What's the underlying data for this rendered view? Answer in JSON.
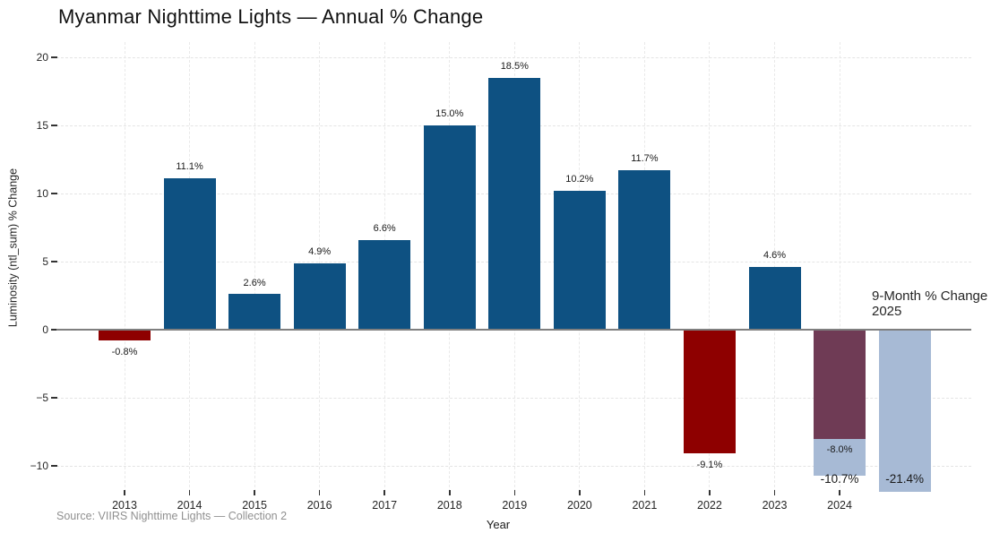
{
  "title": "Myanmar Nighttime Lights — Annual % Change",
  "source_note": "Source: VIIRS Nighttime Lights — Collection 2",
  "annotation": {
    "line1": "9-Month % Change",
    "line2": "2025"
  },
  "axes": {
    "x_label": "Year",
    "y_label": "Luminosity (ntl_sum) % Change",
    "x_tick_labels": [
      "2013",
      "2014",
      "2015",
      "2016",
      "2017",
      "2018",
      "2019",
      "2020",
      "2021",
      "2022",
      "2023",
      "2024"
    ],
    "y_tick_labels": [
      "20",
      "15",
      "10",
      "5",
      "0",
      "−5",
      "−10"
    ],
    "y_tick_values": [
      20,
      15,
      10,
      5,
      0,
      -5,
      -10
    ]
  },
  "colors": {
    "annual_positive": "#0e5182",
    "annual_negative": "#8e0000",
    "overlap": "#6f3b55",
    "nine_month": "#a7bad5",
    "zero_line": "#7f7f7f",
    "gridline": "#e4e4e4",
    "text": "#1a1a1a",
    "muted_text": "#909090"
  },
  "chart_data": {
    "type": "bar",
    "title": "Myanmar Nighttime Lights — Annual % Change",
    "xlabel": "Year",
    "ylabel": "Luminosity (ntl_sum) % Change",
    "ylim": [
      -12,
      21
    ],
    "yticks": [
      20,
      15,
      10,
      5,
      0,
      -5,
      -10
    ],
    "grid": "dotted",
    "legend": "none",
    "categories": [
      "2013",
      "2014",
      "2015",
      "2016",
      "2017",
      "2018",
      "2019",
      "2020",
      "2021",
      "2022",
      "2023",
      "2024",
      "2025"
    ],
    "series": [
      {
        "name": "Annual % Change",
        "values": [
          -0.8,
          11.1,
          2.6,
          4.9,
          6.6,
          15.0,
          18.5,
          10.2,
          11.7,
          -9.1,
          4.6,
          -8.0,
          null
        ]
      },
      {
        "name": "9-Month % Change",
        "values": [
          null,
          null,
          null,
          null,
          null,
          null,
          null,
          null,
          null,
          null,
          null,
          -10.7,
          -21.4
        ]
      }
    ],
    "bars": [
      {
        "year": "2013",
        "segments": [
          {
            "from": 0,
            "to": -0.8,
            "color_key": "annual_negative"
          }
        ],
        "labels": [
          {
            "text": "-0.8%"
          }
        ]
      },
      {
        "year": "2014",
        "segments": [
          {
            "from": 0,
            "to": 11.1,
            "color_key": "annual_positive"
          }
        ],
        "labels": [
          {
            "text": "11.1%"
          }
        ]
      },
      {
        "year": "2015",
        "segments": [
          {
            "from": 0,
            "to": 2.6,
            "color_key": "annual_positive"
          }
        ],
        "labels": [
          {
            "text": "2.6%"
          }
        ]
      },
      {
        "year": "2016",
        "segments": [
          {
            "from": 0,
            "to": 4.9,
            "color_key": "annual_positive"
          }
        ],
        "labels": [
          {
            "text": "4.9%"
          }
        ]
      },
      {
        "year": "2017",
        "segments": [
          {
            "from": 0,
            "to": 6.6,
            "color_key": "annual_positive"
          }
        ],
        "labels": [
          {
            "text": "6.6%"
          }
        ]
      },
      {
        "year": "2018",
        "segments": [
          {
            "from": 0,
            "to": 15.0,
            "color_key": "annual_positive"
          }
        ],
        "labels": [
          {
            "text": "15.0%"
          }
        ]
      },
      {
        "year": "2019",
        "segments": [
          {
            "from": 0,
            "to": 18.5,
            "color_key": "annual_positive"
          }
        ],
        "labels": [
          {
            "text": "18.5%"
          }
        ]
      },
      {
        "year": "2020",
        "segments": [
          {
            "from": 0,
            "to": 10.2,
            "color_key": "annual_positive"
          }
        ],
        "labels": [
          {
            "text": "10.2%"
          }
        ]
      },
      {
        "year": "2021",
        "segments": [
          {
            "from": 0,
            "to": 11.7,
            "color_key": "annual_positive"
          }
        ],
        "labels": [
          {
            "text": "11.7%"
          }
        ]
      },
      {
        "year": "2022",
        "segments": [
          {
            "from": 0,
            "to": -9.1,
            "color_key": "annual_negative"
          }
        ],
        "labels": [
          {
            "text": "-9.1%"
          }
        ]
      },
      {
        "year": "2023",
        "segments": [
          {
            "from": 0,
            "to": 4.6,
            "color_key": "annual_positive"
          }
        ],
        "labels": [
          {
            "text": "4.6%"
          }
        ]
      },
      {
        "year": "2024",
        "segments": [
          {
            "from": 0,
            "to": -8.0,
            "color_key": "overlap"
          },
          {
            "from": -8.0,
            "to": -10.7,
            "color_key": "nine_month"
          }
        ],
        "labels": [
          {
            "text": "-8.0%",
            "vy": -8.8
          },
          {
            "text": "-10.7%",
            "vy": -11.0,
            "size": 13.5
          }
        ]
      },
      {
        "year": "2025",
        "segments": [
          {
            "from": 0,
            "to": -21.4,
            "color_key": "nine_month"
          }
        ],
        "labels": [
          {
            "text": "-21.4%",
            "vy": -11.0,
            "size": 13.5
          }
        ]
      }
    ]
  }
}
